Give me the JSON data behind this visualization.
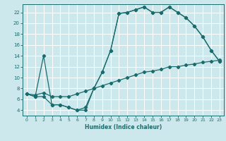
{
  "xlabel": "Humidex (Indice chaleur)",
  "bg_color": "#cce8ec",
  "grid_color": "#ffffff",
  "line_color": "#1a6b6b",
  "xlim": [
    -0.5,
    23.5
  ],
  "ylim": [
    3.0,
    23.5
  ],
  "xticks": [
    0,
    1,
    2,
    3,
    4,
    5,
    6,
    7,
    8,
    9,
    10,
    11,
    12,
    13,
    14,
    15,
    16,
    17,
    18,
    19,
    20,
    21,
    22,
    23
  ],
  "yticks": [
    4,
    6,
    8,
    10,
    12,
    14,
    16,
    18,
    20,
    22
  ],
  "line1_x": [
    0,
    1,
    2,
    3,
    4,
    5,
    6,
    7,
    8,
    9,
    10,
    11,
    12,
    13,
    14,
    15,
    16,
    17,
    18,
    19,
    20,
    21,
    22,
    23
  ],
  "line1_y": [
    7.0,
    6.5,
    6.5,
    5.0,
    5.0,
    4.5,
    4.0,
    4.0,
    8.0,
    11.0,
    15.0,
    21.8,
    22.0,
    22.5,
    23.0,
    22.0,
    22.0,
    23.0,
    22.0,
    21.0,
    19.5,
    17.5,
    15.0,
    13.0
  ],
  "line2_x": [
    0,
    1,
    2,
    3,
    4,
    5,
    6,
    7,
    8,
    9,
    10,
    11,
    12,
    13,
    14,
    15,
    16,
    17,
    18,
    19,
    20,
    21,
    22,
    23
  ],
  "line2_y": [
    7.0,
    6.8,
    7.2,
    6.5,
    6.5,
    6.5,
    7.0,
    7.5,
    8.0,
    8.5,
    9.0,
    9.5,
    10.0,
    10.5,
    11.0,
    11.2,
    11.5,
    12.0,
    12.0,
    12.3,
    12.5,
    12.8,
    13.0,
    13.2
  ],
  "line3_x": [
    0,
    1,
    2,
    3,
    4,
    5,
    6,
    7,
    8,
    9,
    10,
    11,
    12,
    13,
    14,
    15,
    16,
    17,
    18,
    19,
    20,
    21,
    22,
    23
  ],
  "line3_y": [
    7.0,
    6.5,
    14.0,
    5.0,
    5.0,
    4.5,
    4.0,
    4.5,
    8.0,
    11.0,
    15.0,
    21.8,
    22.0,
    22.5,
    23.0,
    22.0,
    22.0,
    23.0,
    22.0,
    21.0,
    19.5,
    17.5,
    15.0,
    13.0
  ]
}
